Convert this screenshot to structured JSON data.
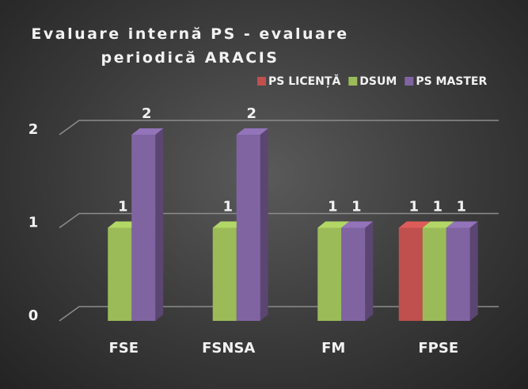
{
  "chart_data": {
    "type": "bar3d",
    "title": "Evaluare internă PS - evaluare periodică ARACIS",
    "categories": [
      "FSE",
      "FSNSA",
      "FM",
      "FPSE"
    ],
    "series": [
      {
        "name": "PS LICENȚĂ",
        "color": "#c0504d",
        "values": [
          null,
          null,
          null,
          1
        ]
      },
      {
        "name": "DSUM",
        "color": "#9bbb59",
        "values": [
          1,
          1,
          1,
          1
        ]
      },
      {
        "name": "PS MASTER",
        "color": "#8064a2",
        "values": [
          2,
          2,
          1,
          1
        ]
      }
    ],
    "ylim": [
      0,
      2
    ],
    "yticks": [
      0,
      1,
      2
    ],
    "grid": true,
    "legend": "top-right"
  }
}
